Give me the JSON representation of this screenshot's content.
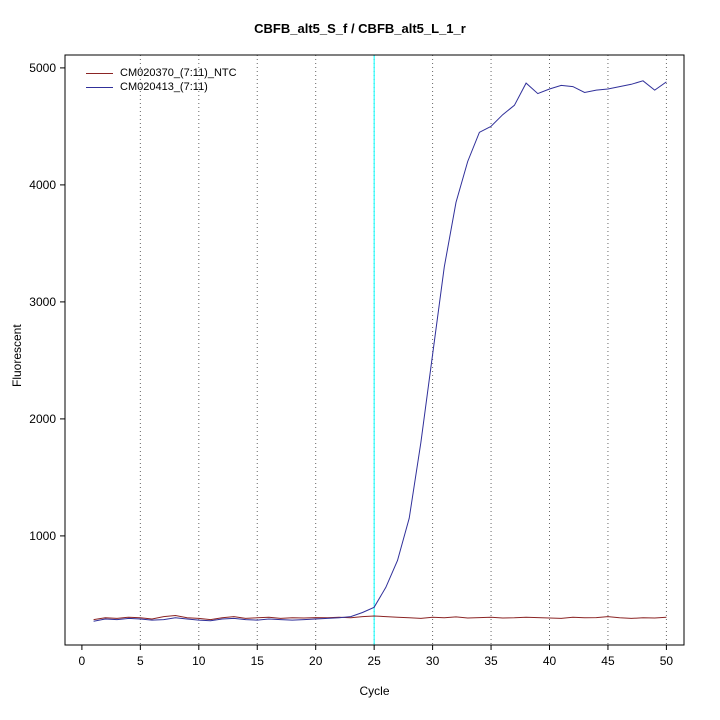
{
  "chart_data": {
    "type": "line",
    "title": "CBFB_alt5_S_f / CBFB_alt5_L_1_r",
    "xlabel": "Cycle",
    "ylabel": "Fluorescent",
    "xlim": [
      0,
      50
    ],
    "ylim": [
      0,
      5000
    ],
    "xticks": [
      0,
      5,
      10,
      15,
      20,
      25,
      30,
      35,
      40,
      45,
      50
    ],
    "yticks": [
      1000,
      2000,
      3000,
      4000,
      5000
    ],
    "grid": "vertical-dotted",
    "grid_color": "#666666",
    "legend_position": "top-left",
    "threshold_line": {
      "x": 25,
      "color": "#00ffff"
    },
    "x": [
      1,
      2,
      3,
      4,
      5,
      6,
      7,
      8,
      9,
      10,
      11,
      12,
      13,
      14,
      15,
      16,
      17,
      18,
      19,
      20,
      21,
      22,
      23,
      24,
      25,
      26,
      27,
      28,
      29,
      30,
      31,
      32,
      33,
      34,
      35,
      36,
      37,
      38,
      39,
      40,
      41,
      42,
      43,
      44,
      45,
      46,
      47,
      48,
      49,
      50
    ],
    "series": [
      {
        "name": "CM020370_(7:11)_NTC",
        "color": "#8b2424",
        "values": [
          285,
          300,
          295,
          305,
          300,
          290,
          310,
          320,
          300,
          295,
          285,
          300,
          310,
          295,
          300,
          305,
          295,
          300,
          298,
          302,
          300,
          305,
          300,
          310,
          315,
          310,
          305,
          300,
          295,
          305,
          300,
          308,
          298,
          302,
          305,
          298,
          300,
          305,
          302,
          298,
          295,
          305,
          300,
          302,
          310,
          300,
          295,
          300,
          298,
          305
        ]
      },
      {
        "name": "CM020413_(7:11)",
        "color": "#30309a",
        "values": [
          270,
          290,
          285,
          295,
          290,
          280,
          285,
          300,
          290,
          280,
          275,
          290,
          295,
          285,
          280,
          290,
          285,
          280,
          285,
          290,
          295,
          300,
          310,
          345,
          390,
          560,
          790,
          1150,
          1800,
          2550,
          3300,
          3850,
          4200,
          4450,
          4500,
          4600,
          4680,
          4870,
          4780,
          4820,
          4850,
          4840,
          4790,
          4810,
          4820,
          4840,
          4860,
          4890,
          4810,
          4880
        ]
      }
    ]
  }
}
